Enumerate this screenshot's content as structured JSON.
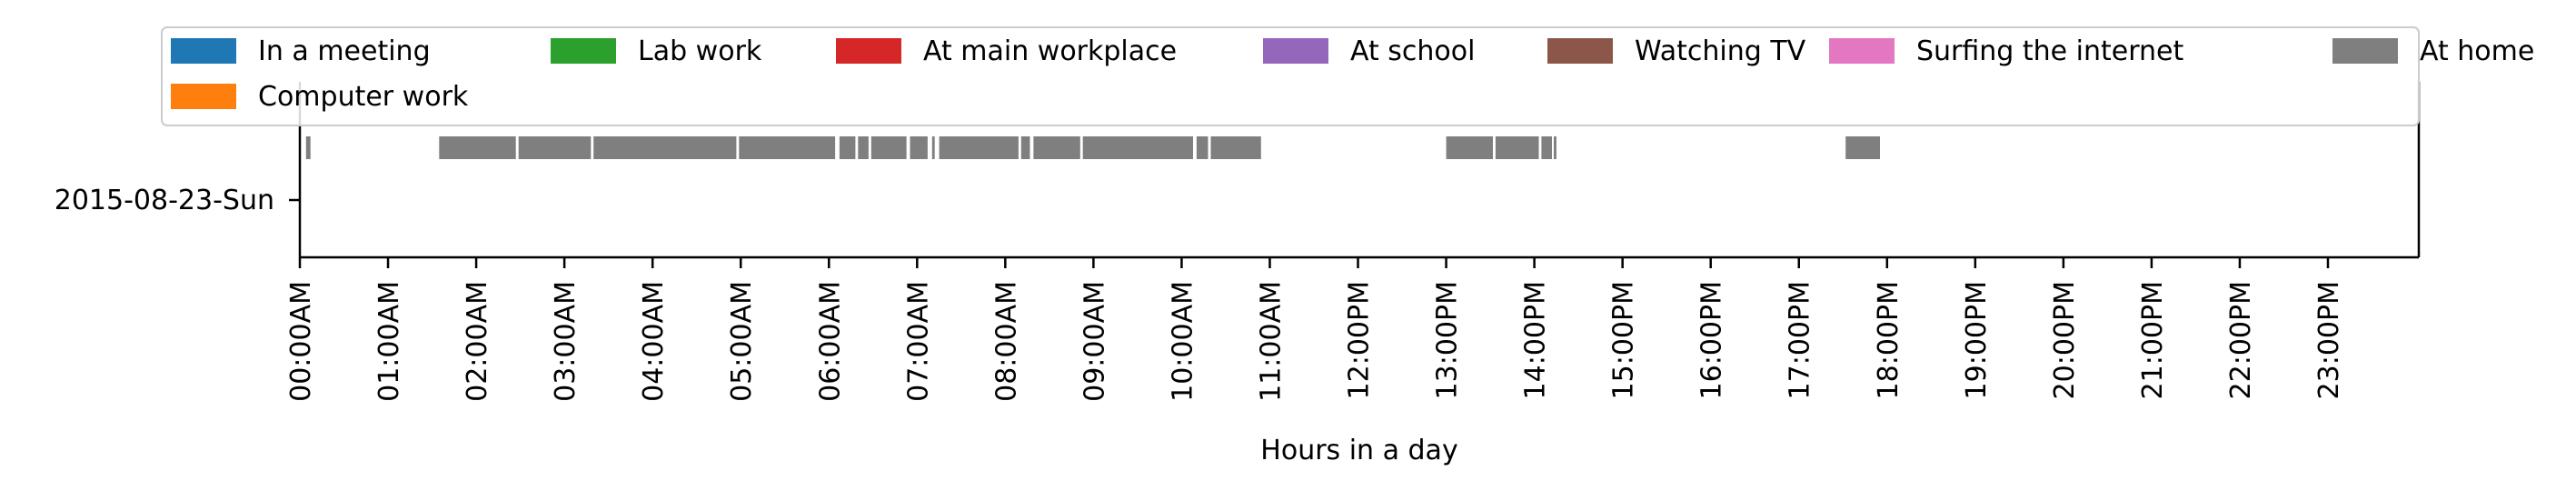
{
  "chart_data": {
    "type": "bar",
    "orientation": "horizontal-timeline",
    "xlabel": "Hours in a day",
    "xlim": [
      0,
      24
    ],
    "x_ticks": [
      {
        "value": 0,
        "label": "00:00AM"
      },
      {
        "value": 1,
        "label": "01:00AM"
      },
      {
        "value": 2,
        "label": "02:00AM"
      },
      {
        "value": 3,
        "label": "03:00AM"
      },
      {
        "value": 4,
        "label": "04:00AM"
      },
      {
        "value": 5,
        "label": "05:00AM"
      },
      {
        "value": 6,
        "label": "06:00AM"
      },
      {
        "value": 7,
        "label": "07:00AM"
      },
      {
        "value": 8,
        "label": "08:00AM"
      },
      {
        "value": 9,
        "label": "09:00AM"
      },
      {
        "value": 10,
        "label": "10:00AM"
      },
      {
        "value": 11,
        "label": "11:00AM"
      },
      {
        "value": 12,
        "label": "12:00PM"
      },
      {
        "value": 13,
        "label": "13:00PM"
      },
      {
        "value": 14,
        "label": "14:00PM"
      },
      {
        "value": 15,
        "label": "15:00PM"
      },
      {
        "value": 16,
        "label": "16:00PM"
      },
      {
        "value": 17,
        "label": "17:00PM"
      },
      {
        "value": 18,
        "label": "18:00PM"
      },
      {
        "value": 19,
        "label": "19:00PM"
      },
      {
        "value": 20,
        "label": "20:00PM"
      },
      {
        "value": 21,
        "label": "21:00PM"
      },
      {
        "value": 22,
        "label": "22:00PM"
      },
      {
        "value": 23,
        "label": "23:00PM"
      }
    ],
    "categories": [
      "2015-08-23-Sun"
    ],
    "legend": {
      "placement": "top",
      "entries": [
        {
          "name": "In a meeting",
          "color": "#1f77b4"
        },
        {
          "name": "Lab work",
          "color": "#2ca02c"
        },
        {
          "name": "At main workplace",
          "color": "#d62728"
        },
        {
          "name": "At school",
          "color": "#9467bd"
        },
        {
          "name": "Watching TV",
          "color": "#8c564b"
        },
        {
          "name": "Surfing the internet",
          "color": "#e377c2"
        },
        {
          "name": "At home",
          "color": "#7f7f7f"
        },
        {
          "name": "Computer work",
          "color": "#ff7f0e"
        }
      ]
    },
    "series": [
      {
        "name": "At home",
        "color": "#7f7f7f",
        "row": "2015-08-23-Sun",
        "segments": [
          [
            0.07,
            0.12
          ],
          [
            1.58,
            2.45
          ],
          [
            2.48,
            3.3
          ],
          [
            3.33,
            4.95
          ],
          [
            4.98,
            6.07
          ],
          [
            6.12,
            6.3
          ],
          [
            6.33,
            6.45
          ],
          [
            6.48,
            6.88
          ],
          [
            6.92,
            7.12
          ],
          [
            7.17,
            7.2
          ],
          [
            7.25,
            8.15
          ],
          [
            8.18,
            8.28
          ],
          [
            8.32,
            8.85
          ],
          [
            8.88,
            10.13
          ],
          [
            10.17,
            10.3
          ],
          [
            10.33,
            10.9
          ],
          [
            13.0,
            13.53
          ],
          [
            13.56,
            14.05
          ],
          [
            14.08,
            14.2
          ],
          [
            14.22,
            14.25
          ],
          [
            17.53,
            17.92
          ]
        ]
      }
    ]
  }
}
